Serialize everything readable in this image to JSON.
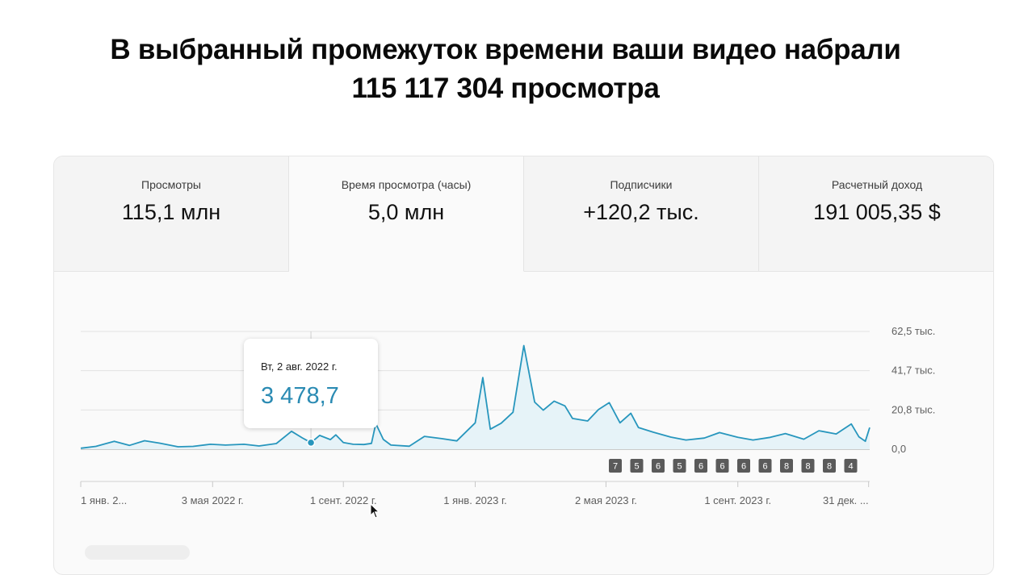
{
  "headline": {
    "line1": "В выбранный промежуток времени ваши видео набрали",
    "line2": "115 117 304 просмотра"
  },
  "tabs": [
    {
      "label": "Просмотры",
      "value": "115,1 млн",
      "active": false
    },
    {
      "label": "Время просмотра (часы)",
      "value": "5,0 млн",
      "active": true
    },
    {
      "label": "Подписчики",
      "value": "+120,2 тыс.",
      "active": false
    },
    {
      "label": "Расчетный доход",
      "value": "191 005,35 $",
      "active": false
    }
  ],
  "tooltip": {
    "date": "Вт, 2 авг. 2022 г.",
    "value": "3 478,7"
  },
  "colors": {
    "line": "#2796bd",
    "area": "#e6f3f8",
    "tooltip_value": "#2b8bb3",
    "badge": "#5a5a5a"
  },
  "icons": [
    "mouse-cursor-icon"
  ],
  "chart_data": {
    "type": "area",
    "ylim": [
      0,
      62500
    ],
    "y_ticks": [
      "62,5 тыс.",
      "41,7 тыс.",
      "20,8 тыс.",
      "0,0"
    ],
    "y_tick_values": [
      62500,
      41700,
      20800,
      0
    ],
    "x_ticks": [
      "1 янв. 2...",
      "3 мая 2022 г.",
      "1 сент. 2022 г.",
      "1 янв. 2023 г.",
      "2 мая 2023 г.",
      "1 сент. 2023 г.",
      "31 дек. ..."
    ],
    "x_tick_dates": [
      "2022-01-01",
      "2022-05-03",
      "2022-09-01",
      "2023-01-01",
      "2023-05-02",
      "2023-09-01",
      "2023-12-31"
    ],
    "xlim": [
      "2022-01-01",
      "2024-01-01"
    ],
    "grid": true,
    "hover": {
      "x": "2022-08-02",
      "y": 3478.7
    },
    "badges": [
      "7",
      "5",
      "6",
      "5",
      "6",
      "6",
      "6",
      "6",
      "8",
      "8",
      "8",
      "4"
    ],
    "series": [
      {
        "points": [
          [
            "2022-01-01",
            500
          ],
          [
            "2022-01-15",
            1500
          ],
          [
            "2022-02-01",
            4200
          ],
          [
            "2022-02-15",
            2000
          ],
          [
            "2022-03-01",
            4500
          ],
          [
            "2022-03-15",
            3200
          ],
          [
            "2022-04-01",
            1300
          ],
          [
            "2022-04-15",
            1500
          ],
          [
            "2022-05-01",
            2600
          ],
          [
            "2022-05-15",
            2200
          ],
          [
            "2022-06-01",
            2600
          ],
          [
            "2022-06-15",
            1700
          ],
          [
            "2022-07-01",
            3000
          ],
          [
            "2022-07-15",
            9500
          ],
          [
            "2022-07-25",
            6000
          ],
          [
            "2022-08-02",
            3478.7
          ],
          [
            "2022-08-10",
            7300
          ],
          [
            "2022-08-20",
            5100
          ],
          [
            "2022-08-25",
            7600
          ],
          [
            "2022-09-01",
            3500
          ],
          [
            "2022-09-10",
            2600
          ],
          [
            "2022-09-20",
            2500
          ],
          [
            "2022-09-27",
            3100
          ],
          [
            "2022-10-01",
            13600
          ],
          [
            "2022-10-08",
            5200
          ],
          [
            "2022-10-15",
            2200
          ],
          [
            "2022-11-01",
            1600
          ],
          [
            "2022-11-15",
            6800
          ],
          [
            "2022-12-01",
            5600
          ],
          [
            "2022-12-15",
            4400
          ],
          [
            "2023-01-01",
            14000
          ],
          [
            "2023-01-08",
            38000
          ],
          [
            "2023-01-15",
            10600
          ],
          [
            "2023-01-25",
            13800
          ],
          [
            "2023-02-05",
            19600
          ],
          [
            "2023-02-15",
            55000
          ],
          [
            "2023-02-25",
            25000
          ],
          [
            "2023-03-05",
            20700
          ],
          [
            "2023-03-15",
            25500
          ],
          [
            "2023-03-25",
            23000
          ],
          [
            "2023-04-01",
            16300
          ],
          [
            "2023-04-15",
            15000
          ],
          [
            "2023-04-25",
            21000
          ],
          [
            "2023-05-05",
            24700
          ],
          [
            "2023-05-15",
            14000
          ],
          [
            "2023-05-25",
            19100
          ],
          [
            "2023-06-01",
            11500
          ],
          [
            "2023-06-15",
            9000
          ],
          [
            "2023-07-01",
            6400
          ],
          [
            "2023-07-15",
            4900
          ],
          [
            "2023-08-01",
            5900
          ],
          [
            "2023-08-15",
            8800
          ],
          [
            "2023-09-01",
            6300
          ],
          [
            "2023-09-15",
            4900
          ],
          [
            "2023-10-01",
            6300
          ],
          [
            "2023-10-15",
            8300
          ],
          [
            "2023-11-01",
            5300
          ],
          [
            "2023-11-15",
            9800
          ],
          [
            "2023-12-01",
            8100
          ],
          [
            "2023-12-15",
            13400
          ],
          [
            "2023-12-22",
            6600
          ],
          [
            "2023-12-28",
            4200
          ],
          [
            "2024-01-01",
            11500
          ]
        ]
      }
    ]
  }
}
